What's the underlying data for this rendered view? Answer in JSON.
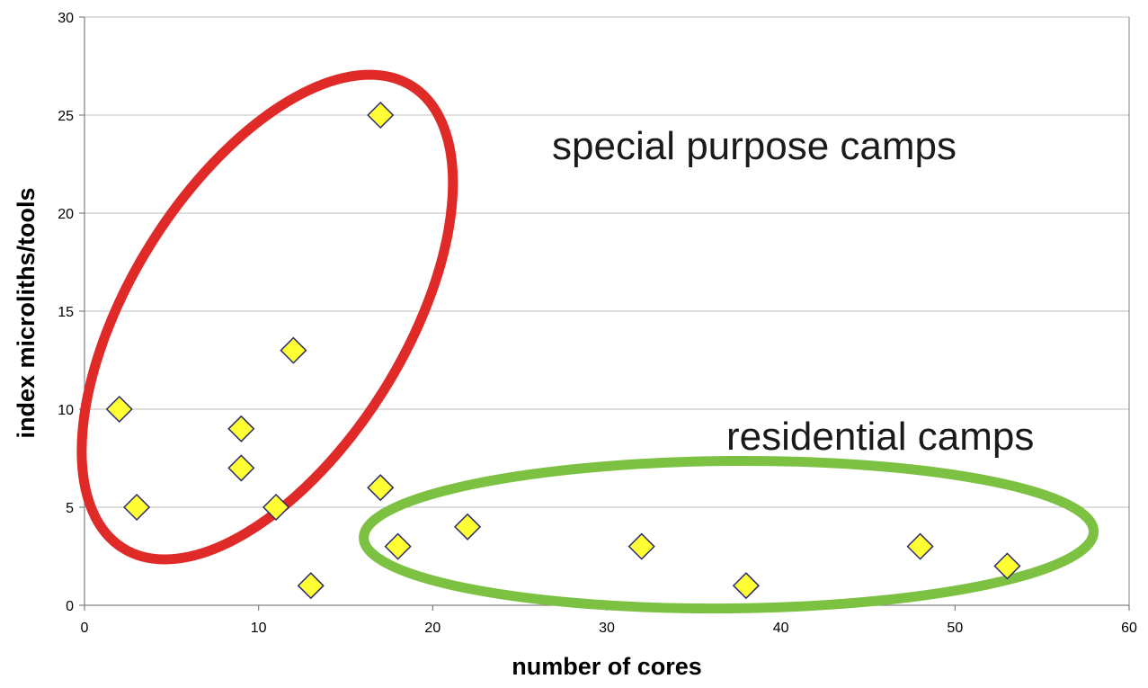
{
  "chart_data": {
    "type": "scatter",
    "xlabel": "number of cores",
    "ylabel": "index microliths/tools",
    "xlim": [
      0,
      60
    ],
    "ylim": [
      0,
      30
    ],
    "x_ticks": [
      0,
      10,
      20,
      30,
      40,
      50,
      60
    ],
    "y_ticks": [
      0,
      5,
      10,
      15,
      20,
      25,
      30
    ],
    "grid": "horizontal",
    "legend": "none",
    "series": [
      {
        "marker": "diamond",
        "points": [
          {
            "x": 2,
            "y": 10
          },
          {
            "x": 3,
            "y": 5
          },
          {
            "x": 9,
            "y": 9
          },
          {
            "x": 9,
            "y": 7
          },
          {
            "x": 11,
            "y": 5
          },
          {
            "x": 12,
            "y": 13
          },
          {
            "x": 13,
            "y": 1
          },
          {
            "x": 17,
            "y": 25
          },
          {
            "x": 17,
            "y": 6
          },
          {
            "x": 18,
            "y": 3
          },
          {
            "x": 22,
            "y": 4
          },
          {
            "x": 32,
            "y": 3
          },
          {
            "x": 38,
            "y": 1
          },
          {
            "x": 48,
            "y": 3
          },
          {
            "x": 53,
            "y": 2
          }
        ]
      }
    ],
    "annotations": {
      "special": {
        "text": "special purpose camps",
        "ellipse_center": [
          10.5,
          14.7
        ],
        "ellipse_color": "#e02a27"
      },
      "residential": {
        "text": "residential camps",
        "ellipse_center": [
          37,
          3.6
        ],
        "ellipse_color": "#7cc142"
      }
    },
    "colors": {
      "marker_fill": "#ffff33",
      "marker_stroke": "#2b2b6e",
      "grid": "#bdbdbd",
      "axis": "#808080"
    }
  }
}
